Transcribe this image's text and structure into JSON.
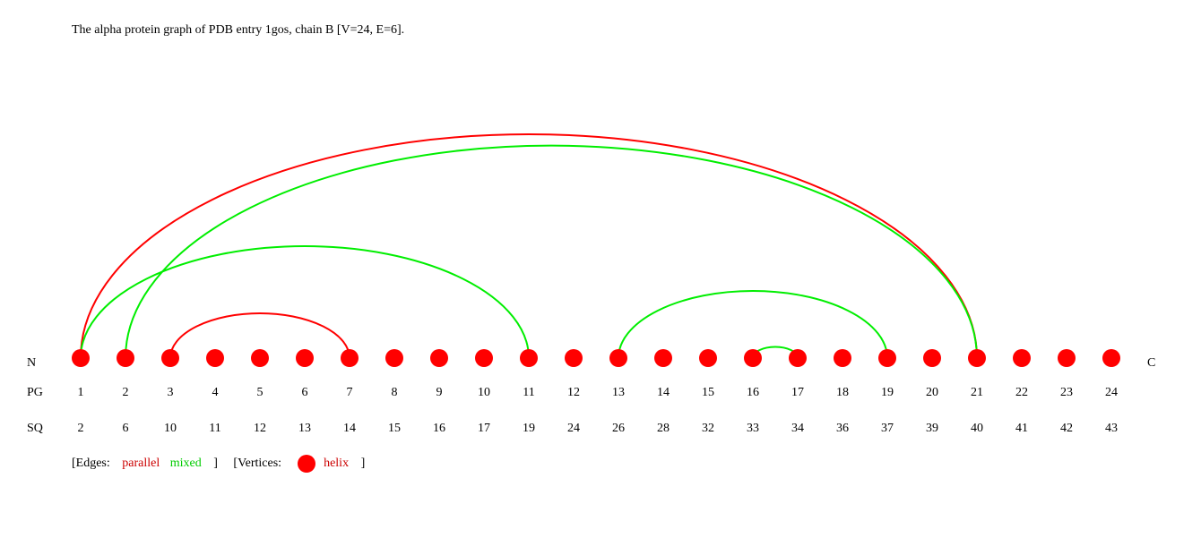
{
  "title": "The alpha protein graph of PDB entry 1gos, chain B [V=24, E=6].",
  "terminals": {
    "n": "N",
    "c": "C"
  },
  "row_labels": {
    "pg": "PG",
    "sq": "SQ"
  },
  "vertex_color": "#ff0000",
  "edge_colors": {
    "parallel": "#ff0000",
    "mixed": "#00ee00"
  },
  "vertices": [
    {
      "pg": "1",
      "sq": "2"
    },
    {
      "pg": "2",
      "sq": "6"
    },
    {
      "pg": "3",
      "sq": "10"
    },
    {
      "pg": "4",
      "sq": "11"
    },
    {
      "pg": "5",
      "sq": "12"
    },
    {
      "pg": "6",
      "sq": "13"
    },
    {
      "pg": "7",
      "sq": "14"
    },
    {
      "pg": "8",
      "sq": "15"
    },
    {
      "pg": "9",
      "sq": "16"
    },
    {
      "pg": "10",
      "sq": "17"
    },
    {
      "pg": "11",
      "sq": "19"
    },
    {
      "pg": "12",
      "sq": "24"
    },
    {
      "pg": "13",
      "sq": "26"
    },
    {
      "pg": "14",
      "sq": "28"
    },
    {
      "pg": "15",
      "sq": "32"
    },
    {
      "pg": "16",
      "sq": "33"
    },
    {
      "pg": "17",
      "sq": "34"
    },
    {
      "pg": "18",
      "sq": "36"
    },
    {
      "pg": "19",
      "sq": "37"
    },
    {
      "pg": "20",
      "sq": "39"
    },
    {
      "pg": "21",
      "sq": "40"
    },
    {
      "pg": "22",
      "sq": "41"
    },
    {
      "pg": "23",
      "sq": "42"
    },
    {
      "pg": "24",
      "sq": "43"
    }
  ],
  "edges": [
    {
      "from": 1,
      "to": 21,
      "type": "parallel"
    },
    {
      "from": 2,
      "to": 21,
      "type": "mixed"
    },
    {
      "from": 1,
      "to": 11,
      "type": "mixed"
    },
    {
      "from": 3,
      "to": 7,
      "type": "parallel"
    },
    {
      "from": 13,
      "to": 19,
      "type": "mixed"
    },
    {
      "from": 16,
      "to": 17,
      "type": "mixed"
    }
  ],
  "legend": {
    "edges_open": "[Edges:",
    "parallel": "parallel",
    "mixed": "mixed",
    "edges_close": "]",
    "vertices_open": "[Vertices:",
    "helix": "helix",
    "vertices_close": "]"
  }
}
